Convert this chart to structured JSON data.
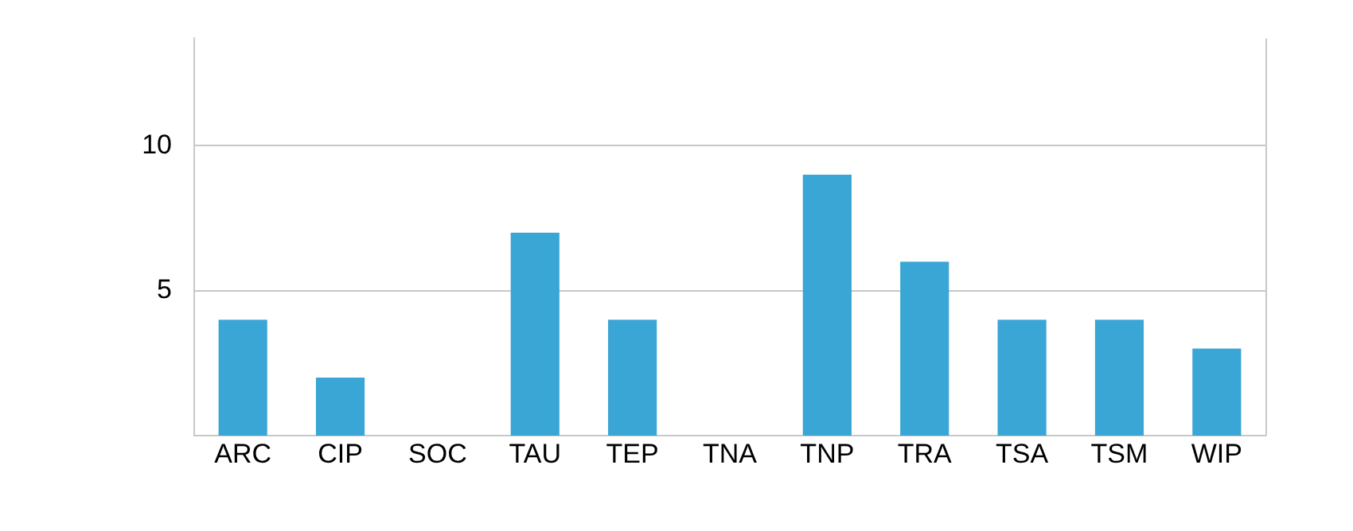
{
  "chart_data": {
    "type": "bar",
    "categories": [
      "ARC",
      "CIP",
      "SOC",
      "TAU",
      "TEP",
      "TNA",
      "TNP",
      "TRA",
      "TSA",
      "TSM",
      "WIP"
    ],
    "values": [
      4,
      2,
      null,
      7,
      4,
      null,
      9,
      6,
      4,
      4,
      3
    ],
    "color": "#3aa6d5",
    "ylim": [
      0,
      13.7
    ],
    "yticks": [
      5,
      10
    ],
    "grid": "y"
  }
}
